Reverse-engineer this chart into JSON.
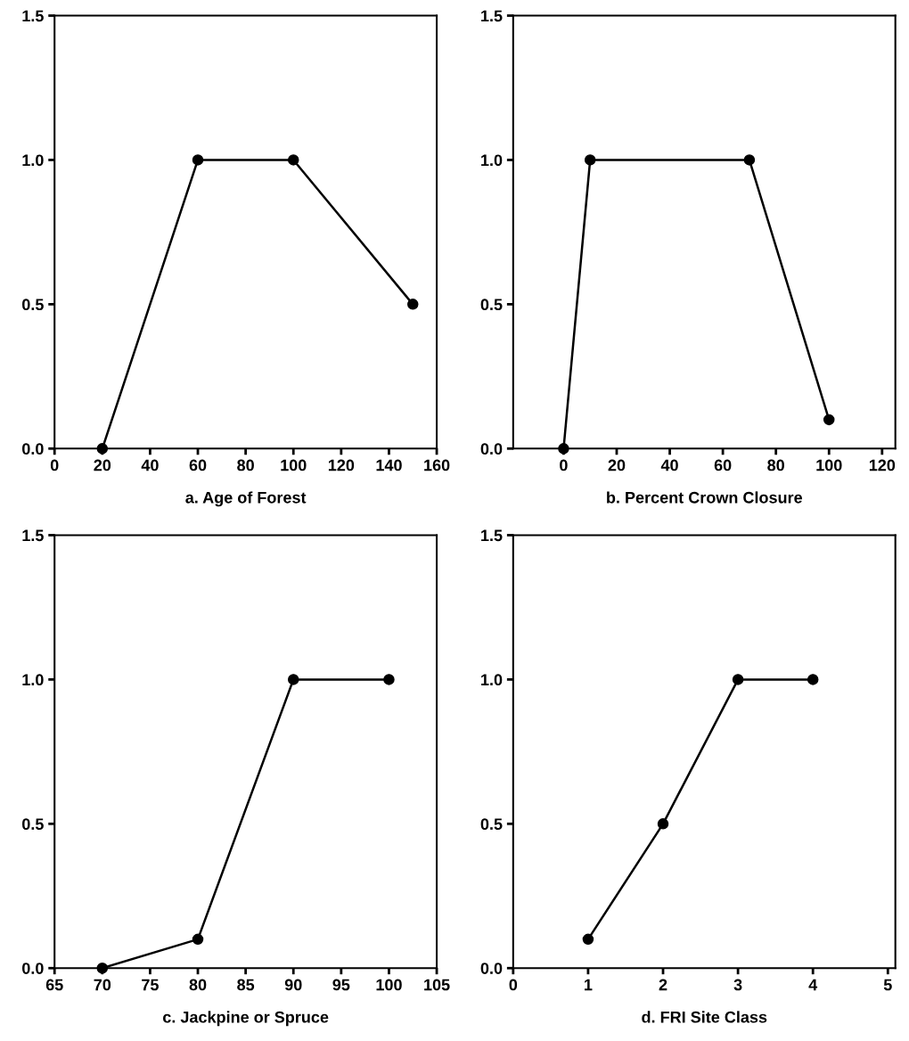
{
  "chart_data": [
    {
      "type": "line",
      "xlabel": "a. Age of Forest",
      "x": [
        20,
        60,
        100,
        150
      ],
      "values": [
        0,
        1,
        1,
        0.5
      ],
      "color": "#000000",
      "marker": "circle",
      "line_style": "solid",
      "xlim": [
        0,
        160
      ],
      "xticks": [
        0,
        20,
        40,
        60,
        80,
        100,
        120,
        140,
        160
      ],
      "ylim": [
        0,
        1.5
      ],
      "yticks": [
        {
          "value": 0,
          "label": "0.0"
        },
        {
          "value": 0.5,
          "label": "0.5"
        },
        {
          "value": 1,
          "label": "1.0"
        },
        {
          "value": 1.5,
          "label": "1.5"
        }
      ],
      "grid": false,
      "legend": false
    },
    {
      "type": "line",
      "xlabel": "b. Percent Crown Closure",
      "x": [
        0,
        10,
        70,
        100
      ],
      "values": [
        0,
        1,
        1,
        0.1
      ],
      "color": "#000000",
      "marker": "circle",
      "line_style": "solid",
      "xlim": [
        -19,
        125
      ],
      "xticks": [
        0,
        20,
        40,
        60,
        80,
        100,
        120
      ],
      "ylim": [
        0,
        1.5
      ],
      "yticks": [
        {
          "value": 0,
          "label": "0.0"
        },
        {
          "value": 0.5,
          "label": "0.5"
        },
        {
          "value": 1,
          "label": "1.0"
        },
        {
          "value": 1.5,
          "label": "1.5"
        }
      ],
      "grid": false,
      "legend": false
    },
    {
      "type": "line",
      "xlabel": "c. Jackpine or Spruce",
      "x": [
        70,
        80,
        90,
        100
      ],
      "values": [
        0,
        0.1,
        1,
        1
      ],
      "color": "#000000",
      "marker": "circle",
      "line_style": "solid",
      "xlim": [
        65,
        105
      ],
      "xticks": [
        65,
        70,
        75,
        80,
        85,
        90,
        95,
        100,
        105
      ],
      "ylim": [
        0,
        1.5
      ],
      "yticks": [
        {
          "value": 0,
          "label": "0.0"
        },
        {
          "value": 0.5,
          "label": "0.5"
        },
        {
          "value": 1,
          "label": "1.0"
        },
        {
          "value": 1.5,
          "label": "1.5"
        }
      ],
      "grid": false,
      "legend": false
    },
    {
      "type": "line",
      "xlabel": "d. FRI Site Class",
      "x": [
        1,
        2,
        3,
        4
      ],
      "values": [
        0.1,
        0.5,
        1,
        1
      ],
      "color": "#000000",
      "marker": "circle",
      "line_style": "solid",
      "xlim": [
        0,
        5.1
      ],
      "xticks": [
        0,
        1,
        2,
        3,
        4,
        5
      ],
      "ylim": [
        0,
        1.5
      ],
      "yticks": [
        {
          "value": 0,
          "label": "0.0"
        },
        {
          "value": 0.5,
          "label": "0.5"
        },
        {
          "value": 1,
          "label": "1.0"
        },
        {
          "value": 1.5,
          "label": "1.5"
        }
      ],
      "grid": false,
      "legend": false
    }
  ]
}
